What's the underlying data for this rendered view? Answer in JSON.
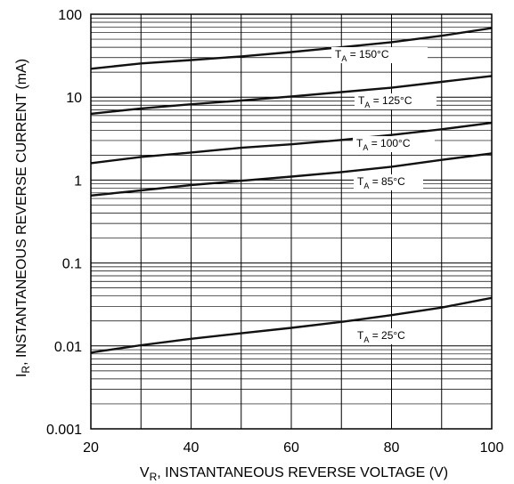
{
  "chart_data": {
    "type": "line",
    "title": "",
    "xlabel": {
      "main": "V",
      "sub": "R",
      "rest": ", INSTANTANEOUS REVERSE VOLTAGE (V)"
    },
    "ylabel": {
      "main": "I",
      "sub": "R",
      "rest": ", INSTANTANEOUS REVERSE CURRENT (mA)"
    },
    "xlim": [
      20,
      100
    ],
    "ylim": [
      0.001,
      100
    ],
    "yscale": "log",
    "grid": true,
    "x_ticks": [
      "20",
      "40",
      "60",
      "80",
      "100"
    ],
    "y_ticks": [
      "0.001",
      "0.01",
      "0.1",
      "1",
      "10",
      "100"
    ],
    "series": [
      {
        "name": "150°C",
        "label_prefix": "T",
        "label_sub": "A",
        "label_value": " = 150°C",
        "x": [
          20,
          30,
          40,
          50,
          60,
          70,
          80,
          90,
          100
        ],
        "y": [
          22,
          25.5,
          28,
          31,
          35,
          40,
          46,
          55,
          68
        ]
      },
      {
        "name": "125°C",
        "label_prefix": "T",
        "label_sub": "A",
        "label_value": " = 125°C",
        "x": [
          20,
          30,
          40,
          50,
          60,
          70,
          80,
          90,
          100
        ],
        "y": [
          6.3,
          7.3,
          8.2,
          9.1,
          10.2,
          11.5,
          13,
          15.3,
          18
        ]
      },
      {
        "name": "100°C",
        "label_prefix": "T",
        "label_sub": "A",
        "label_value": " = 100°C",
        "x": [
          20,
          30,
          40,
          50,
          60,
          70,
          80,
          90,
          100
        ],
        "y": [
          1.6,
          1.9,
          2.15,
          2.45,
          2.7,
          3.05,
          3.5,
          4.1,
          4.9
        ]
      },
      {
        "name": "85°C",
        "label_prefix": "T",
        "label_sub": "A",
        "label_value": " = 85°C",
        "x": [
          20,
          30,
          40,
          50,
          60,
          70,
          80,
          90,
          100
        ],
        "y": [
          0.65,
          0.75,
          0.87,
          0.98,
          1.1,
          1.25,
          1.45,
          1.75,
          2.1
        ]
      },
      {
        "name": "25°C",
        "label_prefix": "T",
        "label_sub": "A",
        "label_value": " = 25°C",
        "x": [
          20,
          30,
          40,
          50,
          60,
          70,
          80,
          90,
          100
        ],
        "y": [
          0.0083,
          0.0102,
          0.0122,
          0.0142,
          0.0165,
          0.0195,
          0.0235,
          0.029,
          0.038
        ]
      }
    ]
  }
}
